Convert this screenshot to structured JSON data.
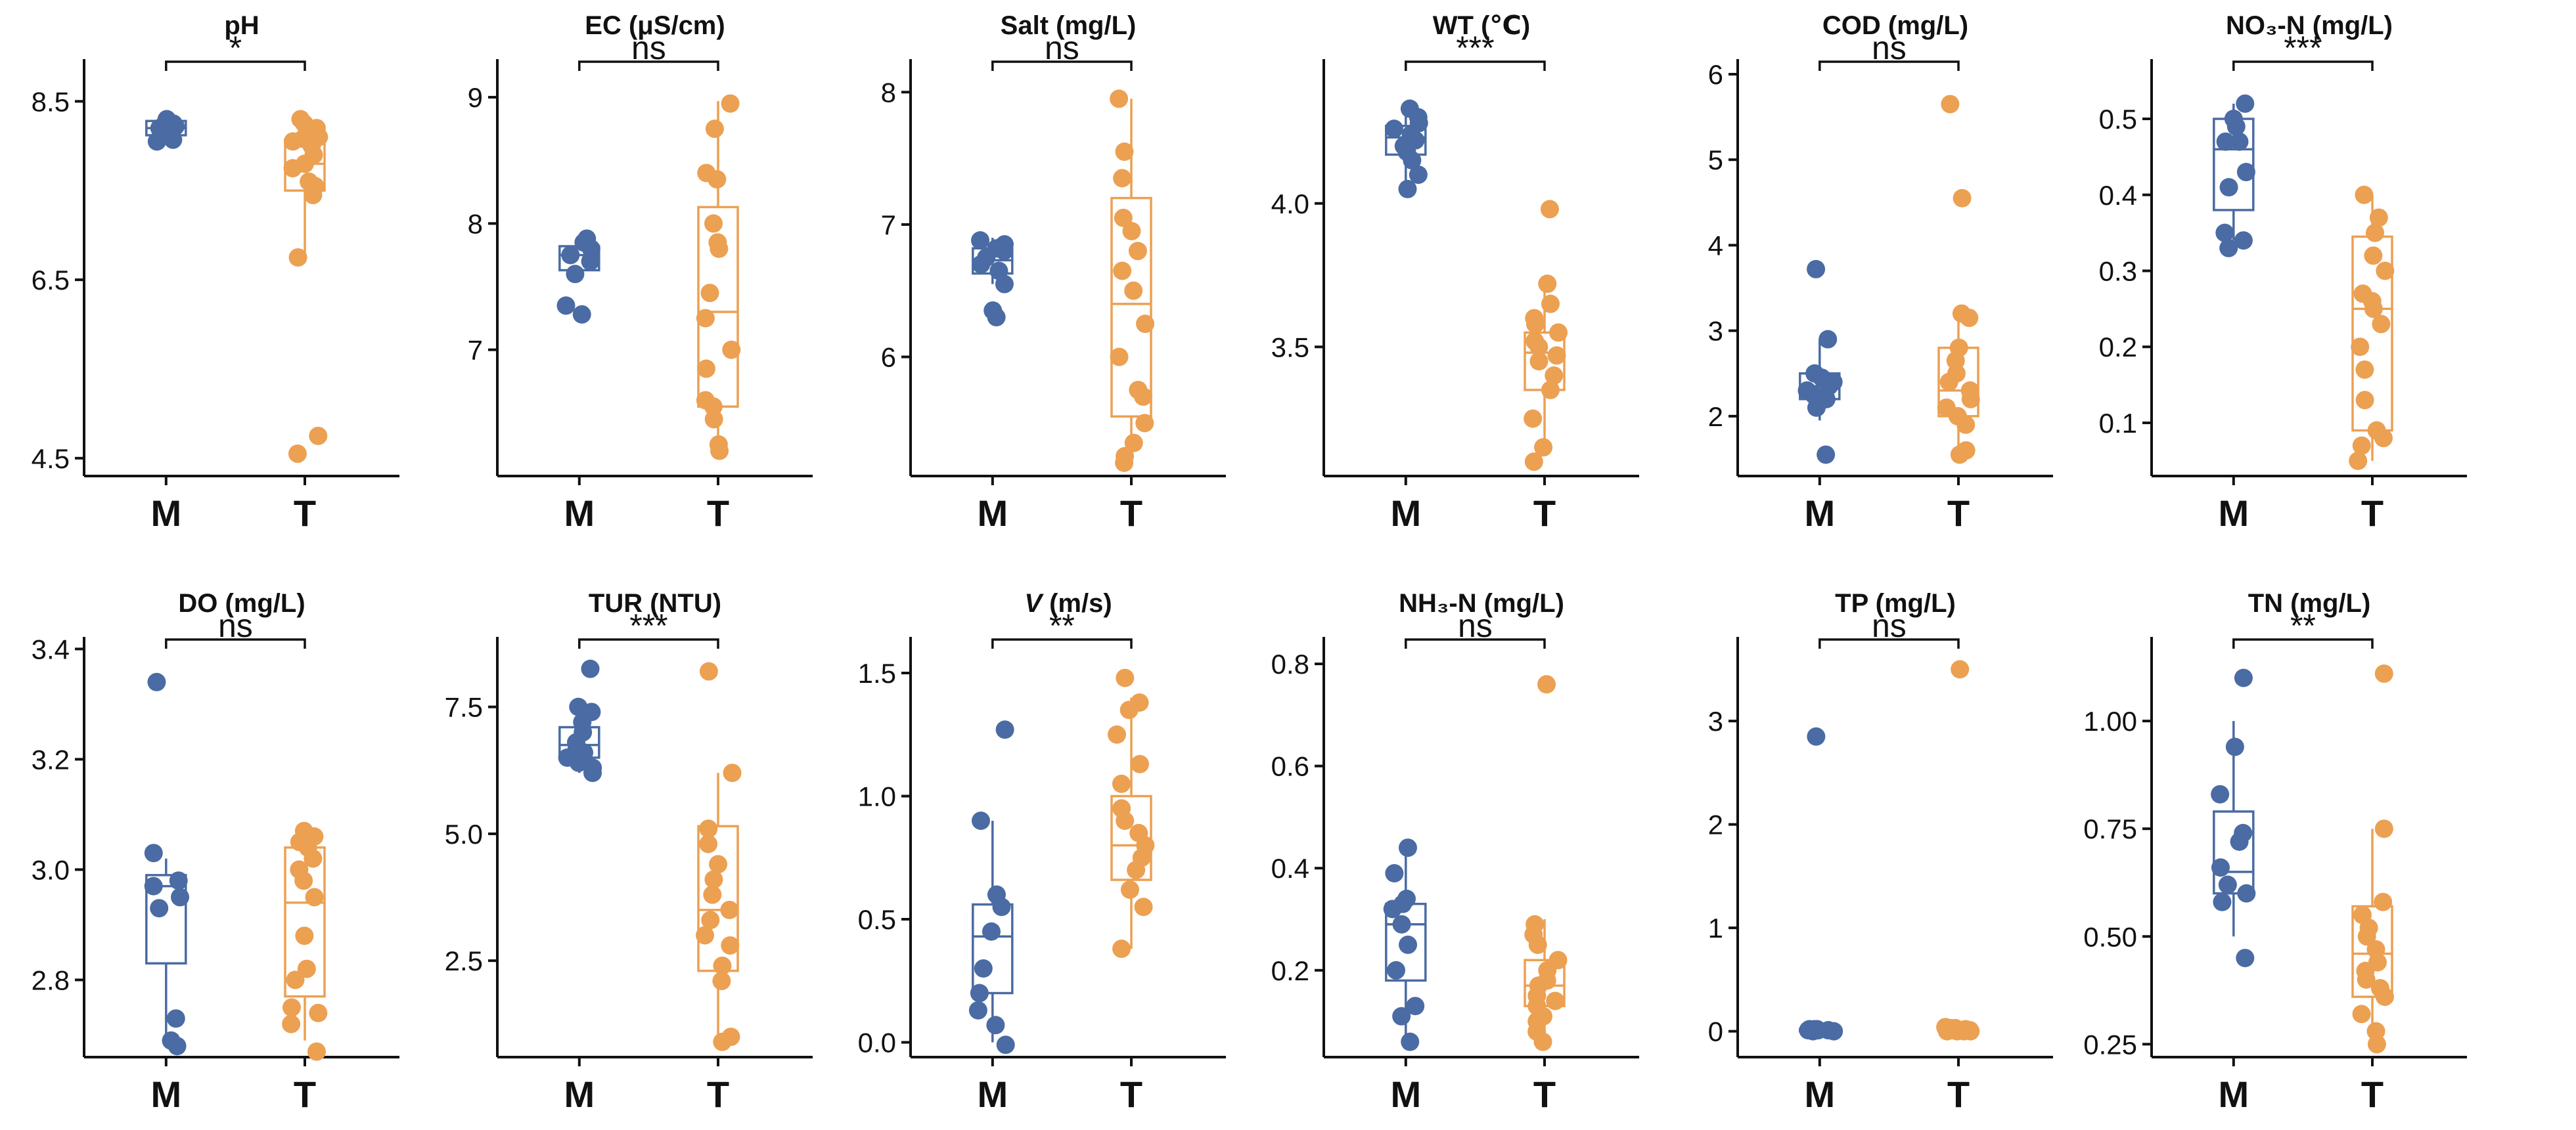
{
  "figure": {
    "description": "Water quality parameters, M vs T, box plots with points"
  },
  "colors": {
    "M": "#4a6ba3",
    "T": "#eca052"
  },
  "chart_data": [
    {
      "type": "box",
      "id": "ph",
      "title": "pH",
      "categories": [
        "M",
        "T"
      ],
      "ylim": [
        4.3,
        8.9
      ],
      "ticks": [
        4.5,
        6.5,
        8.5
      ],
      "tick_labels": [
        "4.5",
        "6.5",
        "8.5"
      ],
      "significance": "*",
      "box": {
        "M": {
          "q1": 8.12,
          "median": 8.2,
          "q3": 8.28,
          "whisker_low": 8.08,
          "whisker_high": 8.32
        },
        "T": {
          "q1": 7.5,
          "median": 7.8,
          "q3": 8.07,
          "whisker_low": 6.8,
          "whisker_high": 8.3
        }
      },
      "points": {
        "M": [
          8.05,
          8.07,
          8.12,
          8.15,
          8.2,
          8.22,
          8.25,
          8.28,
          8.3
        ],
        "T": [
          4.75,
          4.55,
          6.75,
          7.45,
          7.55,
          7.6,
          7.75,
          7.8,
          7.9,
          8.0,
          8.05,
          8.08,
          8.1,
          8.2,
          8.25,
          8.3
        ]
      }
    },
    {
      "type": "box",
      "id": "ec",
      "title": "EC (μS/cm)",
      "categories": [
        "M",
        "T"
      ],
      "ylim": [
        6.0,
        9.25
      ],
      "ticks": [
        7,
        8,
        9
      ],
      "tick_labels": [
        "7",
        "8",
        "9"
      ],
      "significance": "ns",
      "box": {
        "M": {
          "q1": 7.63,
          "median": 7.75,
          "q3": 7.82,
          "whisker_low": 7.6,
          "whisker_high": 7.88
        },
        "T": {
          "q1": 6.55,
          "median": 7.3,
          "q3": 8.13,
          "whisker_low": 6.25,
          "whisker_high": 8.97
        }
      },
      "points": {
        "M": [
          7.28,
          7.35,
          7.6,
          7.7,
          7.75,
          7.8,
          7.85,
          7.88
        ],
        "T": [
          6.2,
          6.25,
          6.45,
          6.55,
          6.6,
          6.85,
          7.0,
          7.25,
          7.45,
          7.8,
          7.85,
          8.0,
          8.4,
          8.75,
          8.95,
          8.35
        ]
      }
    },
    {
      "type": "box",
      "id": "salt",
      "title": "Salt (mg/L)",
      "categories": [
        "M",
        "T"
      ],
      "ylim": [
        5.1,
        8.2
      ],
      "ticks": [
        6,
        7,
        8
      ],
      "tick_labels": [
        "6",
        "7",
        "8"
      ],
      "significance": "ns",
      "box": {
        "M": {
          "q1": 6.63,
          "median": 6.73,
          "q3": 6.82,
          "whisker_low": 6.55,
          "whisker_high": 6.9
        },
        "T": {
          "q1": 5.55,
          "median": 6.4,
          "q3": 7.2,
          "whisker_low": 5.2,
          "whisker_high": 7.95
        }
      },
      "points": {
        "M": [
          6.3,
          6.35,
          6.55,
          6.65,
          6.7,
          6.75,
          6.8,
          6.82,
          6.85,
          6.88
        ],
        "T": [
          5.2,
          5.25,
          5.35,
          5.5,
          5.7,
          5.75,
          6.0,
          6.25,
          6.5,
          6.65,
          6.8,
          7.05,
          7.35,
          7.55,
          7.95,
          6.95
        ]
      }
    },
    {
      "type": "box",
      "id": "wt",
      "title": "WT (℃)",
      "categories": [
        "M",
        "T"
      ],
      "ylim": [
        3.05,
        4.48
      ],
      "ticks": [
        3.5,
        4.0
      ],
      "tick_labels": [
        "3.5",
        "4.0"
      ],
      "significance": "***",
      "box": {
        "M": {
          "q1": 4.17,
          "median": 4.23,
          "q3": 4.27,
          "whisker_low": 4.05,
          "whisker_high": 4.32
        },
        "T": {
          "q1": 3.35,
          "median": 3.48,
          "q3": 3.55,
          "whisker_low": 3.15,
          "whisker_high": 3.72
        }
      },
      "points": {
        "M": [
          4.05,
          4.1,
          4.15,
          4.18,
          4.2,
          4.22,
          4.24,
          4.26,
          4.28,
          4.3,
          4.33
        ],
        "T": [
          3.1,
          3.15,
          3.25,
          3.35,
          3.4,
          3.45,
          3.47,
          3.5,
          3.52,
          3.55,
          3.58,
          3.6,
          3.65,
          3.72,
          3.98
        ]
      }
    },
    {
      "type": "box",
      "id": "cod",
      "title": "COD (mg/L)",
      "categories": [
        "M",
        "T"
      ],
      "ylim": [
        1.3,
        6.1
      ],
      "ticks": [
        2,
        3,
        4,
        5,
        6
      ],
      "tick_labels": [
        "2",
        "3",
        "4",
        "5",
        "6"
      ],
      "significance": "ns",
      "box": {
        "M": {
          "q1": 2.2,
          "median": 2.35,
          "q3": 2.5,
          "whisker_low": 1.95,
          "whisker_high": 2.9
        },
        "T": {
          "q1": 2.0,
          "median": 2.3,
          "q3": 2.8,
          "whisker_low": 1.6,
          "whisker_high": 3.25
        }
      },
      "points": {
        "M": [
          1.55,
          2.1,
          2.2,
          2.25,
          2.3,
          2.35,
          2.4,
          2.45,
          2.5,
          2.9,
          3.72
        ],
        "T": [
          1.55,
          1.6,
          1.9,
          2.0,
          2.1,
          2.2,
          2.3,
          2.4,
          2.5,
          2.65,
          2.8,
          3.15,
          3.2,
          4.55,
          5.65
        ]
      }
    },
    {
      "type": "box",
      "id": "no3n",
      "title": "NO₃-N (mg/L)",
      "categories": [
        "M",
        "T"
      ],
      "ylim": [
        0.03,
        0.57
      ],
      "ticks": [
        0.1,
        0.2,
        0.3,
        0.4,
        0.5
      ],
      "tick_labels": [
        "0.1",
        "0.2",
        "0.3",
        "0.4",
        "0.5"
      ],
      "significance": "***",
      "box": {
        "M": {
          "q1": 0.38,
          "median": 0.46,
          "q3": 0.5,
          "whisker_low": 0.34,
          "whisker_high": 0.52
        },
        "T": {
          "q1": 0.09,
          "median": 0.25,
          "q3": 0.345,
          "whisker_low": 0.05,
          "whisker_high": 0.4
        }
      },
      "points": {
        "M": [
          0.33,
          0.34,
          0.35,
          0.41,
          0.43,
          0.47,
          0.47,
          0.49,
          0.5,
          0.52
        ],
        "T": [
          0.05,
          0.07,
          0.08,
          0.09,
          0.13,
          0.17,
          0.2,
          0.23,
          0.25,
          0.26,
          0.27,
          0.3,
          0.32,
          0.35,
          0.37,
          0.4
        ]
      }
    },
    {
      "type": "box",
      "id": "do",
      "title": "DO (mg/L)",
      "categories": [
        "M",
        "T"
      ],
      "ylim": [
        2.66,
        3.41
      ],
      "ticks": [
        2.8,
        3.0,
        3.2,
        3.4
      ],
      "tick_labels": [
        "2.8",
        "3.0",
        "3.2",
        "3.4"
      ],
      "significance": "ns",
      "box": {
        "M": {
          "q1": 2.83,
          "median": 2.97,
          "q3": 2.99,
          "whisker_low": 2.7,
          "whisker_high": 3.02
        },
        "T": {
          "q1": 2.77,
          "median": 2.94,
          "q3": 3.04,
          "whisker_low": 2.69,
          "whisker_high": 3.07
        }
      },
      "points": {
        "M": [
          2.68,
          2.69,
          2.73,
          2.93,
          2.95,
          2.97,
          2.98,
          3.03,
          3.34
        ],
        "T": [
          2.67,
          2.72,
          2.74,
          2.75,
          2.8,
          2.82,
          2.88,
          2.95,
          2.98,
          3.0,
          3.02,
          3.04,
          3.05,
          3.06,
          3.07
        ]
      }
    },
    {
      "type": "box",
      "id": "tur",
      "title": "TUR (NTU)",
      "categories": [
        "M",
        "T"
      ],
      "ylim": [
        0.6,
        8.75
      ],
      "ticks": [
        2.5,
        5.0,
        7.5
      ],
      "tick_labels": [
        "2.5",
        "5.0",
        "7.5"
      ],
      "significance": "***",
      "box": {
        "M": {
          "q1": 6.5,
          "median": 6.75,
          "q3": 7.1,
          "whisker_low": 6.2,
          "whisker_high": 7.5
        },
        "T": {
          "q1": 2.3,
          "median": 3.5,
          "q3": 5.15,
          "whisker_low": 0.9,
          "whisker_high": 6.2
        }
      },
      "points": {
        "M": [
          6.2,
          6.3,
          6.4,
          6.5,
          6.6,
          6.7,
          6.8,
          7.0,
          7.2,
          7.4,
          7.5,
          8.25
        ],
        "T": [
          0.9,
          1.0,
          2.1,
          2.4,
          2.8,
          3.0,
          3.3,
          3.5,
          3.8,
          4.1,
          4.4,
          4.8,
          5.1,
          6.2,
          8.2
        ]
      }
    },
    {
      "type": "box",
      "id": "v",
      "title": "V (m/s)",
      "title_italic_part": "V",
      "categories": [
        "M",
        "T"
      ],
      "ylim": [
        -0.06,
        1.62
      ],
      "ticks": [
        0.0,
        0.5,
        1.0,
        1.5
      ],
      "tick_labels": [
        "0.0",
        "0.5",
        "1.0",
        "1.5"
      ],
      "significance": "**",
      "box": {
        "M": {
          "q1": 0.2,
          "median": 0.43,
          "q3": 0.56,
          "whisker_low": 0.0,
          "whisker_high": 0.9
        },
        "T": {
          "q1": 0.66,
          "median": 0.8,
          "q3": 1.0,
          "whisker_low": 0.38,
          "whisker_high": 1.4
        }
      },
      "points": {
        "M": [
          -0.01,
          0.07,
          0.13,
          0.2,
          0.3,
          0.45,
          0.55,
          0.6,
          0.9,
          1.27
        ],
        "T": [
          0.38,
          0.55,
          0.62,
          0.7,
          0.75,
          0.8,
          0.85,
          0.9,
          0.95,
          1.05,
          1.13,
          1.25,
          1.35,
          1.38,
          1.48
        ]
      }
    },
    {
      "type": "box",
      "id": "nh3n",
      "title": "NH₃-N (mg/L)",
      "categories": [
        "M",
        "T"
      ],
      "ylim": [
        0.03,
        0.84
      ],
      "ticks": [
        0.2,
        0.4,
        0.6,
        0.8
      ],
      "tick_labels": [
        "0.2",
        "0.4",
        "0.6",
        "0.8"
      ],
      "significance": "ns",
      "box": {
        "M": {
          "q1": 0.18,
          "median": 0.29,
          "q3": 0.33,
          "whisker_low": 0.06,
          "whisker_high": 0.44
        },
        "T": {
          "q1": 0.13,
          "median": 0.17,
          "q3": 0.22,
          "whisker_low": 0.06,
          "whisker_high": 0.3
        }
      },
      "points": {
        "M": [
          0.06,
          0.11,
          0.13,
          0.2,
          0.25,
          0.29,
          0.32,
          0.33,
          0.34,
          0.39,
          0.44
        ],
        "T": [
          0.06,
          0.08,
          0.1,
          0.11,
          0.13,
          0.14,
          0.15,
          0.17,
          0.18,
          0.2,
          0.22,
          0.25,
          0.27,
          0.29,
          0.76
        ]
      }
    },
    {
      "type": "box",
      "id": "tp",
      "title": "TP (mg/L)",
      "categories": [
        "M",
        "T"
      ],
      "ylim": [
        -0.25,
        3.75
      ],
      "ticks": [
        0,
        1,
        2,
        3
      ],
      "tick_labels": [
        "0",
        "1",
        "2",
        "3"
      ],
      "significance": "ns",
      "box": {
        "M": {
          "q1": 0.0,
          "median": 0.01,
          "q3": 0.02,
          "whisker_low": 0.0,
          "whisker_high": 0.03
        },
        "T": {
          "q1": 0.0,
          "median": 0.0,
          "q3": 0.02,
          "whisker_low": 0.0,
          "whisker_high": 0.03
        }
      },
      "points": {
        "M": [
          0.0,
          0.0,
          0.01,
          0.01,
          0.01,
          0.02,
          0.02,
          0.02,
          2.85
        ],
        "T": [
          0.0,
          0.0,
          0.0,
          0.0,
          0.01,
          0.01,
          0.01,
          0.01,
          0.02,
          0.02,
          0.03,
          0.03,
          0.04,
          3.5
        ]
      }
    },
    {
      "type": "box",
      "id": "tn",
      "title": "TN (mg/L)",
      "categories": [
        "M",
        "T"
      ],
      "ylim": [
        0.22,
        1.18
      ],
      "ticks": [
        0.25,
        0.5,
        0.75,
        1.0
      ],
      "tick_labels": [
        "0.25",
        "0.50",
        "0.75",
        "1.00"
      ],
      "significance": "**",
      "box": {
        "M": {
          "q1": 0.6,
          "median": 0.65,
          "q3": 0.79,
          "whisker_low": 0.5,
          "whisker_high": 1.0
        },
        "T": {
          "q1": 0.36,
          "median": 0.46,
          "q3": 0.57,
          "whisker_low": 0.26,
          "whisker_high": 0.75
        }
      },
      "points": {
        "M": [
          0.45,
          0.58,
          0.6,
          0.62,
          0.66,
          0.72,
          0.74,
          0.83,
          0.94,
          1.1
        ],
        "T": [
          0.25,
          0.28,
          0.32,
          0.36,
          0.38,
          0.4,
          0.42,
          0.44,
          0.47,
          0.5,
          0.52,
          0.55,
          0.58,
          0.75,
          1.11
        ]
      }
    }
  ]
}
